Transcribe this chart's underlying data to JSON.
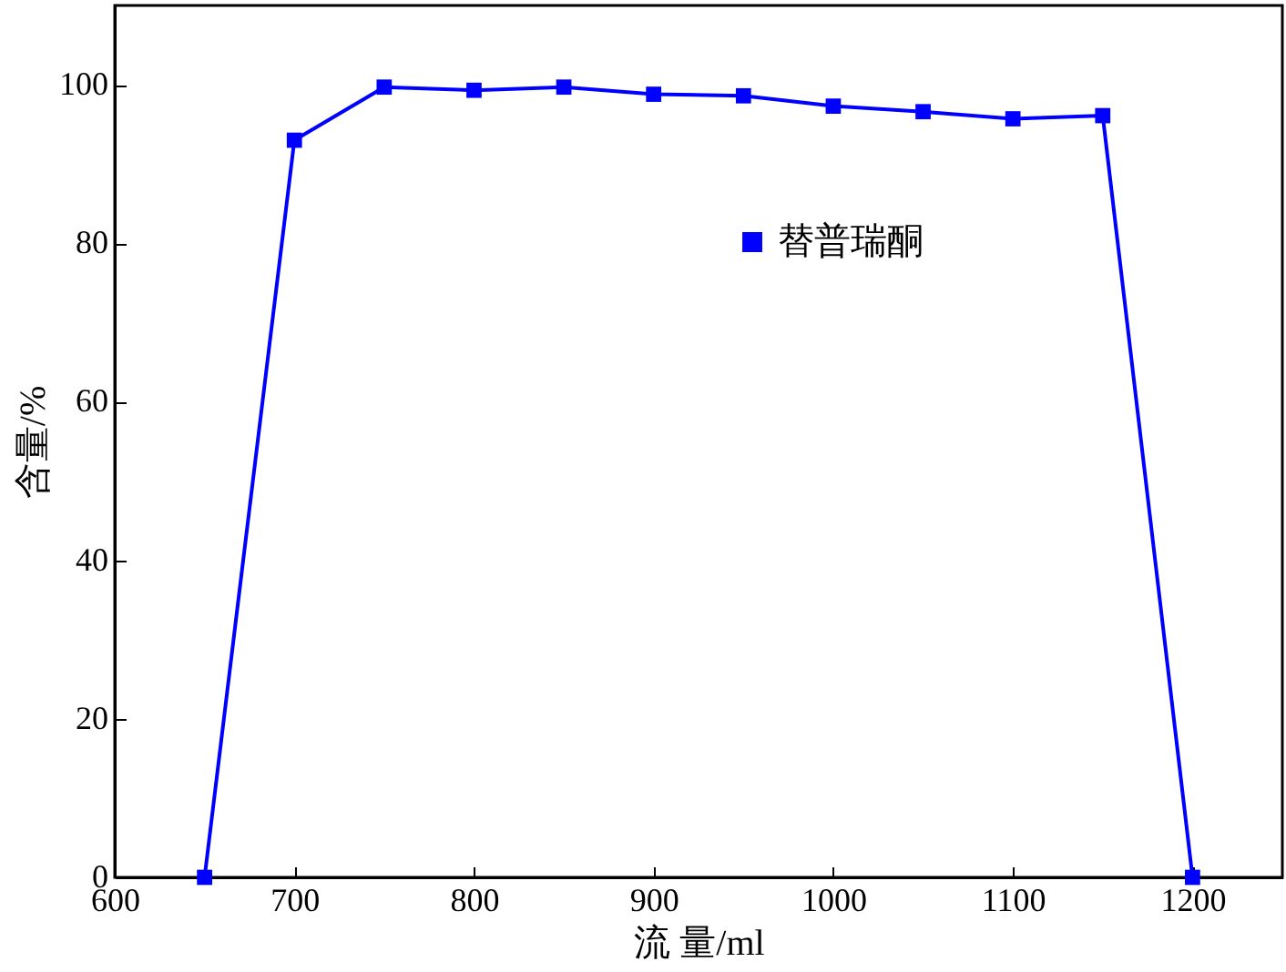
{
  "chart_data": {
    "type": "line",
    "xlabel": "流 量/ml",
    "ylabel": "含量/%",
    "x": [
      650,
      700,
      750,
      800,
      850,
      900,
      950,
      1000,
      1050,
      1100,
      1150,
      1200
    ],
    "series": [
      {
        "name": "替普瑞酮",
        "color": "#0000ff",
        "values": [
          0,
          93,
          99.7,
          99.3,
          99.7,
          98.8,
          98.6,
          97.3,
          96.6,
          95.7,
          96.1,
          0
        ]
      }
    ],
    "xlim": [
      600,
      1250
    ],
    "xticks": [
      600,
      700,
      800,
      900,
      1000,
      1100,
      1200
    ],
    "ylim": [
      0,
      110
    ],
    "yticks": [
      0,
      20,
      40,
      60,
      80,
      100
    ],
    "grid": false,
    "legend": "top right",
    "marker": "square",
    "line_style": "solid"
  }
}
